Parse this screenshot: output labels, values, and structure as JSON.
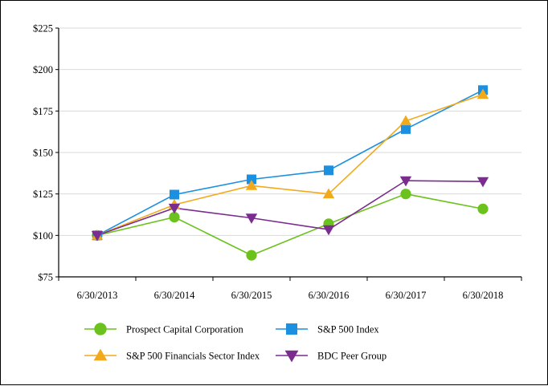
{
  "chart_data": {
    "type": "line",
    "categories": [
      "6/30/2013",
      "6/30/2014",
      "6/30/2015",
      "6/30/2016",
      "6/30/2017",
      "6/30/2018"
    ],
    "ylim": [
      75,
      225
    ],
    "yticks": [
      75,
      100,
      125,
      150,
      175,
      200,
      225
    ],
    "ytick_labels": [
      "$75",
      "$100",
      "$125",
      "$150",
      "$175",
      "$200",
      "$225"
    ],
    "grid": "horizontal",
    "legend_position": "bottom",
    "series": [
      {
        "name": "Prospect Capital Corporation",
        "values": [
          100,
          111,
          88,
          107,
          125,
          116
        ],
        "color": "#6cc21c",
        "marker": "circle"
      },
      {
        "name": "S&P 500 Index",
        "values": [
          100,
          124.6,
          133.8,
          139.2,
          164.1,
          187.6
        ],
        "color": "#1b8fe0",
        "marker": "square"
      },
      {
        "name": "S&P 500 Financials Sector Index",
        "values": [
          100,
          118.5,
          130,
          125,
          169,
          185
        ],
        "color": "#f2aa1c",
        "marker": "triangle-up"
      },
      {
        "name": "BDC Peer Group",
        "values": [
          100,
          116.5,
          110.5,
          103.5,
          133,
          132.5
        ],
        "color": "#7a2c8f",
        "marker": "triangle-down"
      }
    ]
  }
}
